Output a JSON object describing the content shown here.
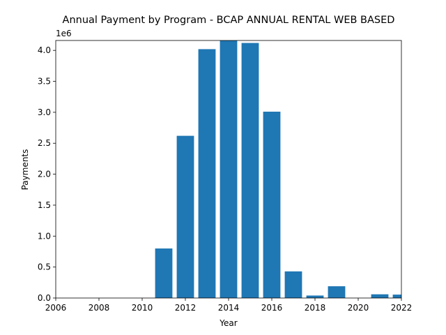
{
  "chart_data": {
    "type": "bar",
    "title": "Annual Payment by Program - BCAP ANNUAL RENTAL WEB BASED",
    "xlabel": "Year",
    "ylabel": "Payments",
    "y_offset_label": "1e6",
    "x": [
      2011,
      2012,
      2013,
      2014,
      2015,
      2016,
      2017,
      2018,
      2019,
      2021,
      2022
    ],
    "values": [
      800000,
      2620000,
      4020000,
      4160000,
      4120000,
      3010000,
      430000,
      40000,
      190000,
      60000,
      55000
    ],
    "xlim": [
      2006,
      2022
    ],
    "ylim": [
      0,
      4160000
    ],
    "xticks": [
      2006,
      2008,
      2010,
      2012,
      2014,
      2016,
      2018,
      2020,
      2022
    ],
    "xtick_labels": [
      "2006",
      "2008",
      "2010",
      "2012",
      "2014",
      "2016",
      "2018",
      "2020",
      "2022"
    ],
    "yticks": [
      0,
      500000,
      1000000,
      1500000,
      2000000,
      2500000,
      3000000,
      3500000,
      4000000
    ],
    "ytick_labels": [
      "0.0",
      "0.5",
      "1.0",
      "1.5",
      "2.0",
      "2.5",
      "3.0",
      "3.5",
      "4.0"
    ],
    "bar_color": "#1f77b4",
    "grid": false,
    "legend": "none"
  }
}
